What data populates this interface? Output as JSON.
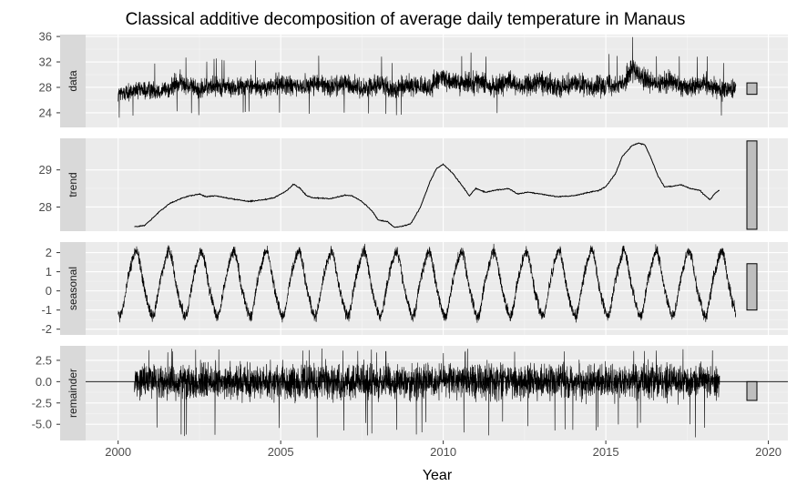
{
  "chart_data": {
    "type": "line",
    "title": "Classical additive decomposition of average daily temperature in Manaus",
    "xlabel": "Year",
    "x_ticks": [
      2000,
      2005,
      2010,
      2015,
      2020
    ],
    "xlim": [
      1999.0,
      2020.6
    ],
    "panels": [
      {
        "name": "data",
        "ylim": [
          21.7,
          36.3
        ],
        "y_ticks": [
          24,
          28,
          32,
          36
        ],
        "tick_labels": [
          "24",
          "28",
          "32",
          "36"
        ],
        "scale_bar": [
          26.9,
          28.7
        ],
        "series": {
          "x": [
            2000.0,
            2000.5,
            2001.0,
            2001.5,
            2001.9,
            2002.5,
            2003.0,
            2003.6,
            2004.0,
            2004.5,
            2005.0,
            2005.5,
            2006.0,
            2006.5,
            2007.0,
            2007.5,
            2008.0,
            2008.5,
            2009.0,
            2009.5,
            2010.0,
            2010.5,
            2011.0,
            2011.5,
            2012.0,
            2012.5,
            2013.0,
            2013.5,
            2014.0,
            2014.5,
            2015.0,
            2015.5,
            2015.8,
            2016.0,
            2016.5,
            2017.0,
            2017.5,
            2018.0,
            2018.5,
            2019.0
          ],
          "center": [
            27.0,
            27.4,
            27.6,
            27.6,
            28.8,
            27.6,
            28.4,
            27.8,
            28.4,
            27.8,
            28.6,
            28.0,
            28.6,
            28.1,
            28.6,
            27.8,
            28.6,
            27.6,
            28.4,
            27.8,
            29.6,
            28.4,
            29.0,
            28.1,
            28.8,
            28.1,
            28.9,
            28.0,
            28.8,
            28.0,
            28.6,
            28.4,
            31.0,
            29.8,
            28.4,
            28.9,
            28.0,
            28.6,
            27.7,
            27.9
          ],
          "amplitude": [
            2.0,
            2.0,
            2.2,
            2.1,
            2.3,
            2.1,
            2.2,
            2.1,
            2.2,
            2.1,
            2.4,
            2.2,
            2.5,
            2.2,
            2.4,
            2.1,
            2.4,
            2.1,
            2.4,
            2.2,
            2.6,
            2.3,
            2.5,
            2.2,
            2.5,
            2.2,
            2.5,
            2.2,
            2.5,
            2.2,
            2.5,
            2.3,
            2.7,
            2.5,
            2.3,
            2.5,
            2.2,
            2.4,
            2.2,
            2.0
          ]
        }
      },
      {
        "name": "trend",
        "ylim": [
          27.35,
          29.85
        ],
        "y_ticks": [
          28,
          29
        ],
        "tick_labels": [
          "28",
          "29"
        ],
        "scale_bar": [
          27.4,
          29.78
        ],
        "series": {
          "x": [
            2000.5,
            2000.8,
            2001.0,
            2001.3,
            2001.6,
            2002.0,
            2002.2,
            2002.5,
            2002.7,
            2003.0,
            2003.5,
            2004.0,
            2004.5,
            2004.8,
            2005.2,
            2005.4,
            2005.6,
            2005.8,
            2006.0,
            2006.5,
            2007.0,
            2007.2,
            2007.5,
            2007.8,
            2008.0,
            2008.3,
            2008.5,
            2008.8,
            2009.0,
            2009.3,
            2009.6,
            2009.8,
            2010.0,
            2010.3,
            2010.6,
            2010.8,
            2011.0,
            2011.3,
            2011.6,
            2012.0,
            2012.3,
            2012.6,
            2013.0,
            2013.5,
            2014.0,
            2014.5,
            2014.8,
            2015.0,
            2015.3,
            2015.5,
            2015.8,
            2016.0,
            2016.2,
            2016.4,
            2016.6,
            2016.8,
            2017.0,
            2017.3,
            2017.6,
            2017.9,
            2018.0,
            2018.2,
            2018.4,
            2018.5
          ],
          "y": [
            27.47,
            27.5,
            27.65,
            27.9,
            28.1,
            28.25,
            28.3,
            28.35,
            28.28,
            28.3,
            28.22,
            28.15,
            28.2,
            28.25,
            28.45,
            28.62,
            28.5,
            28.3,
            28.25,
            28.22,
            28.32,
            28.3,
            28.15,
            27.9,
            27.65,
            27.6,
            27.45,
            27.5,
            27.55,
            28.0,
            28.7,
            29.05,
            29.15,
            28.9,
            28.55,
            28.3,
            28.5,
            28.4,
            28.45,
            28.5,
            28.35,
            28.4,
            28.35,
            28.28,
            28.3,
            28.4,
            28.45,
            28.55,
            28.9,
            29.35,
            29.65,
            29.72,
            29.68,
            29.3,
            28.85,
            28.55,
            28.55,
            28.6,
            28.5,
            28.45,
            28.35,
            28.2,
            28.4,
            28.45
          ]
        }
      },
      {
        "name": "seasonal",
        "ylim": [
          -2.3,
          2.55
        ],
        "y_ticks": [
          -2,
          -1,
          0,
          1,
          2
        ],
        "tick_labels": [
          "-2",
          "-1",
          "0",
          "1",
          "2"
        ],
        "scale_bar": [
          -1.0,
          1.42
        ],
        "series": {
          "period_years": 1.0,
          "start": 2000.0,
          "end": 2019.0,
          "peak": 2.2,
          "trough": -1.45,
          "noise": 0.45
        }
      },
      {
        "name": "remainder",
        "ylim": [
          -6.9,
          4.2
        ],
        "y_ticks": [
          -5.0,
          -2.5,
          0.0,
          2.5
        ],
        "tick_labels": [
          "-5.0",
          "-2.5",
          "0.0",
          "2.5"
        ],
        "scale_bar": [
          -2.2,
          0.0
        ],
        "series": {
          "start": 2000.5,
          "end": 2018.5,
          "typical_range": [
            -2.8,
            3.0
          ],
          "max": 3.9,
          "min": -6.6
        }
      }
    ]
  }
}
